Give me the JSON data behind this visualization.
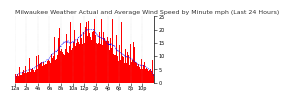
{
  "title": "Milwaukee Weather Actual and Average Wind Speed by Minute mph (Last 24 Hours)",
  "n_points": 1440,
  "ylim": [
    0,
    25
  ],
  "bar_color": "#ff0000",
  "line_color": "#0000ff",
  "background_color": "#ffffff",
  "grid_color": "#aaaaaa",
  "title_fontsize": 4.5,
  "ylabel_fontsize": 4,
  "tick_fontsize": 3.5
}
